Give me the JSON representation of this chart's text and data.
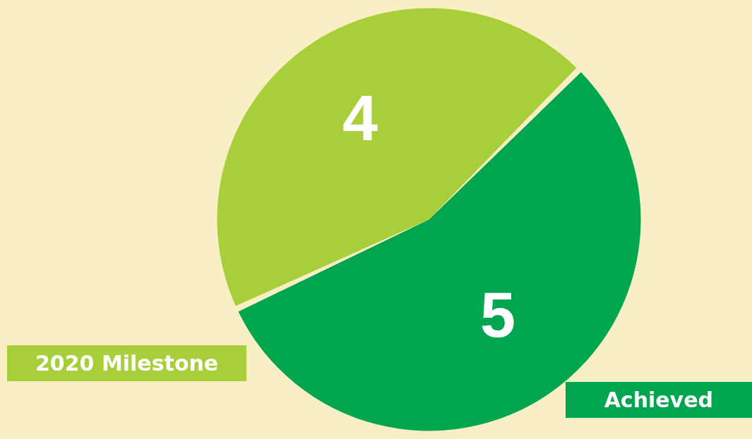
{
  "chart_data": {
    "type": "pie",
    "categories": [
      "Achieved",
      "2020 Milestone"
    ],
    "values": [
      5,
      4
    ],
    "colors": [
      "#00a54f",
      "#a8cf3a"
    ],
    "data_labels": true
  }
}
